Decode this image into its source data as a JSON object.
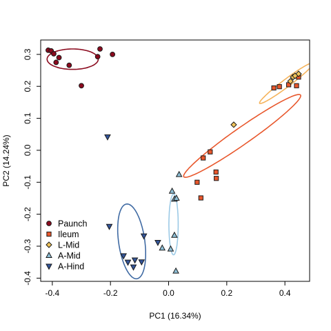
{
  "chart_data": {
    "type": "scatter",
    "title": "",
    "xlabel": "PC1 (16.34%)",
    "ylabel": "PC2 (14.24%)",
    "xlim": [
      -0.44,
      0.485
    ],
    "ylim": [
      -0.41,
      0.345
    ],
    "x_ticks": [
      -0.4,
      -0.2,
      0.0,
      0.2,
      0.4
    ],
    "x_tick_labels": [
      "-0.4",
      "-0.2",
      "0.0",
      "0.2",
      "0.4"
    ],
    "y_ticks": [
      -0.4,
      -0.3,
      -0.2,
      -0.1,
      0.0,
      0.1,
      0.2,
      0.3
    ],
    "y_tick_labels": [
      "-0.4",
      "-0.3",
      "-0.2",
      "-0.1",
      "0.0",
      "0.1",
      "0.2",
      "0.3"
    ],
    "grid": false,
    "legend_position": "bottom-left",
    "series": [
      {
        "name": "Paunch",
        "marker": "circle",
        "fill": "#8b0a1e",
        "ellipse_color": "#8b0a1e",
        "points": [
          [
            -0.414,
            0.313
          ],
          [
            -0.404,
            0.311
          ],
          [
            -0.395,
            0.302
          ],
          [
            -0.387,
            0.275
          ],
          [
            -0.377,
            0.29
          ],
          [
            -0.342,
            0.266
          ],
          [
            -0.244,
            0.293
          ],
          [
            -0.236,
            0.317
          ],
          [
            -0.193,
            0.3
          ],
          [
            -0.3,
            0.202
          ]
        ],
        "ellipse": {
          "cx": -0.33,
          "cy": 0.285,
          "rx": 0.088,
          "ry": 0.032,
          "angle_deg": 0
        }
      },
      {
        "name": "Ileum",
        "marker": "square",
        "fill": "#e8572c",
        "ellipse_color": "#e8572c",
        "points": [
          [
            0.362,
            0.195
          ],
          [
            0.381,
            0.199
          ],
          [
            0.413,
            0.205
          ],
          [
            0.44,
            0.202
          ],
          [
            0.447,
            0.229
          ],
          [
            0.143,
            -0.005
          ],
          [
            0.119,
            -0.024
          ],
          [
            0.163,
            -0.068
          ],
          [
            0.164,
            -0.088
          ],
          [
            0.098,
            -0.1
          ],
          [
            0.111,
            -0.149
          ]
        ],
        "ellipse": {
          "cx": 0.253,
          "cy": 0.045,
          "rx": 0.245,
          "ry": 0.026,
          "angle_deg": 35
        }
      },
      {
        "name": "L-Mid",
        "marker": "diamond",
        "fill": "#f1c45a",
        "ellipse_color": "#f5b35b",
        "points": [
          [
            0.419,
            0.216
          ],
          [
            0.428,
            0.229
          ],
          [
            0.435,
            0.233
          ],
          [
            0.447,
            0.239
          ],
          [
            0.224,
            0.08
          ]
        ],
        "ellipse": {
          "cx": 0.405,
          "cy": 0.21,
          "rx": 0.115,
          "ry": 0.012,
          "angle_deg": 37
        }
      },
      {
        "name": "A-Mid",
        "marker": "triangle-up",
        "fill": "#8ebfd6",
        "ellipse_color": "#9ccae6",
        "points": [
          [
            0.036,
            -0.076
          ],
          [
            0.012,
            -0.128
          ],
          [
            0.02,
            -0.153
          ],
          [
            0.027,
            -0.15
          ],
          [
            0.02,
            -0.266
          ],
          [
            -0.022,
            -0.306
          ],
          [
            0.007,
            -0.309
          ],
          [
            0.025,
            -0.378
          ]
        ],
        "ellipse": {
          "cx": 0.017,
          "cy": -0.232,
          "rx": 0.016,
          "ry": 0.095,
          "angle_deg": 0
        }
      },
      {
        "name": "A-Hind",
        "marker": "triangle-down",
        "fill": "#33559a",
        "ellipse_color": "#3f6aa3",
        "points": [
          [
            -0.21,
            0.042
          ],
          [
            -0.204,
            -0.238
          ],
          [
            -0.037,
            -0.288
          ],
          [
            -0.085,
            -0.268
          ],
          [
            -0.155,
            -0.33
          ],
          [
            -0.14,
            -0.35
          ],
          [
            -0.116,
            -0.343
          ],
          [
            -0.121,
            -0.365
          ],
          [
            -0.093,
            -0.349
          ]
        ],
        "ellipse": {
          "cx": -0.127,
          "cy": -0.285,
          "rx": 0.045,
          "ry": 0.118,
          "angle_deg": 8
        }
      }
    ]
  }
}
